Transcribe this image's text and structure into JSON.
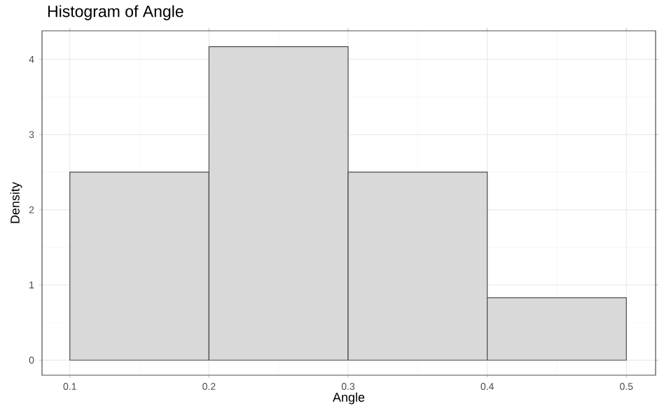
{
  "chart_data": {
    "type": "histogram",
    "title": "Histogram of Angle",
    "xlabel": "Angle",
    "ylabel": "Density",
    "bins": [
      0.1,
      0.2,
      0.3,
      0.4,
      0.5
    ],
    "values": [
      2.5,
      4.17,
      2.5,
      0.83
    ],
    "color": "#d9d9d9",
    "xlim": [
      0.08,
      0.521
    ],
    "ylim": [
      -0.2,
      4.38
    ],
    "xticks": [
      0.1,
      0.2,
      0.3,
      0.4,
      0.5
    ],
    "yticks": [
      0,
      1,
      2,
      3,
      4
    ],
    "grid": true
  }
}
